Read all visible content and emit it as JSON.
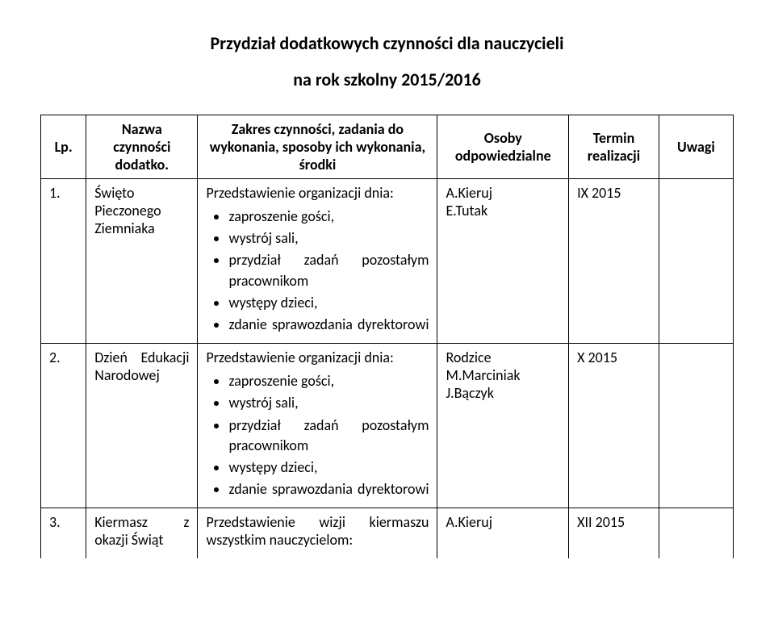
{
  "title": "Przydział dodatkowych czynności dla nauczycieli",
  "subtitle": "na rok szkolny 2015/2016",
  "headers": {
    "lp": "Lp.",
    "name": "Nazwa czynności dodatko.",
    "scope": "Zakres czynności, zadania do wykonania, sposoby ich wykonania, środki",
    "resp": "Osoby odpowiedzialne",
    "term": "Termin realizacji",
    "notes": "Uwagi"
  },
  "rows": [
    {
      "lp": "1.",
      "name": "Święto Pieczonego Ziemniaka",
      "intro": "Przedstawienie organizacji dnia:",
      "bullets": [
        "zaproszenie gości,",
        "wystrój sali,",
        "przydział zadań pozostałym pracownikom",
        "występy dzieci,",
        "zdanie sprawozdania dyrektorowi"
      ],
      "bullet_justify": [
        false,
        false,
        true,
        false,
        true
      ],
      "resp": [
        "A.Kieruj",
        "E.Tutak"
      ],
      "term": "IX 2015"
    },
    {
      "lp": "2.",
      "name": "Dzień Edukacji Narodowej",
      "intro": "Przedstawienie organizacji dnia:",
      "bullets": [
        "zaproszenie gości,",
        "wystrój sali,",
        "przydział zadań pozostałym pracownikom",
        "występy dzieci,",
        "zdanie sprawozdania dyrektorowi"
      ],
      "bullet_justify": [
        false,
        false,
        true,
        false,
        true
      ],
      "resp": [
        "Rodzice",
        "M.Marciniak",
        "J.Bączyk"
      ],
      "term": "X 2015"
    },
    {
      "lp": "3.",
      "name": "Kiermasz z okazji Świąt",
      "intro": "Przedstawienie wizji kiermaszu wszystkim nauczycielom:",
      "intro_justify": true,
      "bullets": [],
      "resp": [
        "A.Kieruj"
      ],
      "term": "XII 2015"
    }
  ]
}
